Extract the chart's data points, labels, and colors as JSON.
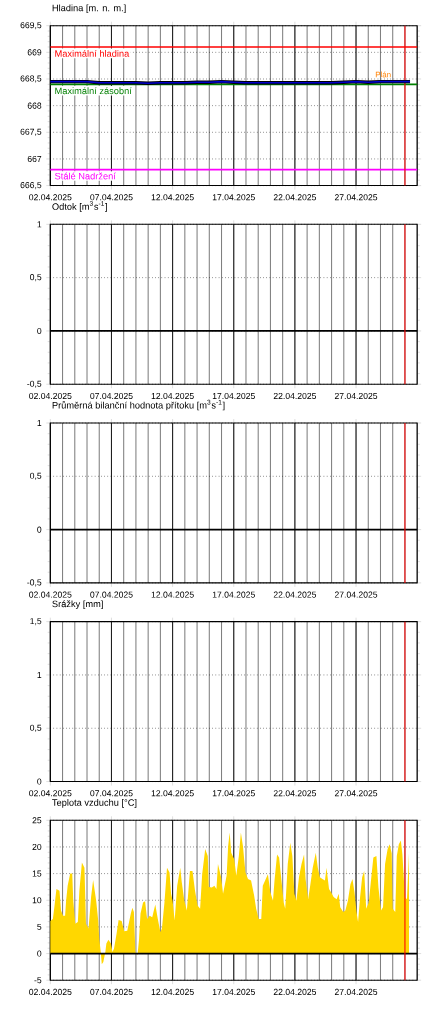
{
  "chart_data": [
    {
      "type": "line",
      "title": "Hladina [m. n. m.]",
      "grid": true,
      "x": [
        "2025-04-02",
        "2025-04-03",
        "2025-04-04",
        "2025-04-05",
        "2025-04-06",
        "2025-04-07",
        "2025-04-08",
        "2025-04-09",
        "2025-04-10",
        "2025-04-11",
        "2025-04-12",
        "2025-04-13",
        "2025-04-14",
        "2025-04-15",
        "2025-04-16",
        "2025-04-17",
        "2025-04-18",
        "2025-04-19",
        "2025-04-20",
        "2025-04-21",
        "2025-04-22",
        "2025-04-23",
        "2025-04-24",
        "2025-04-25",
        "2025-04-26",
        "2025-04-27",
        "2025-04-28",
        "2025-04-29",
        "2025-04-30",
        "2025-05-01T10:00"
      ],
      "series": [
        {
          "color": "#000000",
          "values": [
            668.45,
            668.45,
            668.45,
            668.45,
            668.43,
            668.43,
            668.43,
            668.43,
            668.42,
            668.43,
            668.43,
            668.43,
            668.44,
            668.44,
            668.45,
            668.44,
            668.43,
            668.43,
            668.43,
            668.43,
            668.43,
            668.43,
            668.43,
            668.43,
            668.44,
            668.45,
            668.44,
            668.45,
            668.45,
            668.45
          ]
        },
        {
          "color": "#0000cc",
          "values": [
            668.45,
            668.45,
            668.45,
            668.45,
            668.43,
            668.43,
            668.43,
            668.43,
            668.42,
            668.43,
            668.43,
            668.43,
            668.44,
            668.44,
            668.45,
            668.44,
            668.43,
            668.43,
            668.43,
            668.43,
            668.43,
            668.43,
            668.43,
            668.43,
            668.44,
            668.45,
            668.44,
            668.45,
            668.45,
            668.45
          ]
        }
      ],
      "xlim": [
        "2025-04-02",
        "2025-05-02"
      ],
      "xticks": [
        {
          "value": "2025-04-02",
          "label": "02.04.2025"
        },
        {
          "value": "2025-04-07",
          "label": "07.04.2025"
        },
        {
          "value": "2025-04-12",
          "label": "12.04.2025"
        },
        {
          "value": "2025-04-17",
          "label": "17.04.2025"
        },
        {
          "value": "2025-04-22",
          "label": "22.04.2025"
        },
        {
          "value": "2025-04-27",
          "label": "27.04.2025"
        }
      ],
      "ylim": [
        666.5,
        669.5
      ],
      "yticks": [
        {
          "value": 666.5,
          "label": "666,5"
        },
        667,
        {
          "value": 667.5,
          "label": "667,5"
        },
        668,
        {
          "value": 668.5,
          "label": "668,5"
        },
        669,
        {
          "value": 669.5,
          "label": "669,5"
        }
      ],
      "ref_lines": [
        {
          "axis": "y",
          "value": 669.1,
          "label": "Maximální hladina",
          "color": "#ff0000"
        },
        {
          "axis": "y",
          "value": 668.4,
          "label": "Maximální zásobní",
          "color": "#008000"
        },
        {
          "axis": "y",
          "value": 666.8,
          "label": "Stálé Nadržení",
          "color": "#ff00ff"
        },
        {
          "axis": "x",
          "value": "2025-05-01",
          "color": "#ff0000"
        }
      ],
      "annotations": [
        {
          "text": "Plán",
          "x": "2025-04-30",
          "y": 668.5
        }
      ]
    },
    {
      "type": "line",
      "title": "Odtok [m$^{3}$s$^{-1}$]",
      "grid": true,
      "xlim": [
        "2025-04-02",
        "2025-05-02"
      ],
      "xticks": [
        {
          "value": "2025-04-02",
          "label": "02.04.2025"
        },
        {
          "value": "2025-04-07",
          "label": "07.04.2025"
        },
        {
          "value": "2025-04-12",
          "label": "12.04.2025"
        },
        {
          "value": "2025-04-17",
          "label": "17.04.2025"
        },
        {
          "value": "2025-04-22",
          "label": "22.04.2025"
        },
        {
          "value": "2025-04-27",
          "label": "27.04.2025"
        }
      ],
      "ylim": [
        -0.5,
        1
      ],
      "yticks": [
        {
          "value": -0.5,
          "label": "-0,5"
        },
        0,
        {
          "value": 0.5,
          "label": "0,5"
        },
        1
      ],
      "ref_lines": [
        {
          "axis": "y",
          "value": 0,
          "color": "#000000"
        },
        {
          "axis": "x",
          "value": "2025-05-01",
          "color": "#ff0000"
        }
      ]
    },
    {
      "type": "line",
      "title": "Průměrná bilanční hodnota přítoku   [m$^{3}$s$^{-1}$]",
      "grid": true,
      "xlim": [
        "2025-04-02",
        "2025-05-02"
      ],
      "xticks": [
        {
          "value": "2025-04-02",
          "label": "02.04.2025"
        },
        {
          "value": "2025-04-07",
          "label": "07.04.2025"
        },
        {
          "value": "2025-04-12",
          "label": "12.04.2025"
        },
        {
          "value": "2025-04-17",
          "label": "17.04.2025"
        },
        {
          "value": "2025-04-22",
          "label": "22.04.2025"
        },
        {
          "value": "2025-04-27",
          "label": "27.04.2025"
        }
      ],
      "ylim": [
        -0.5,
        1
      ],
      "yticks": [
        {
          "value": -0.5,
          "label": "-0,5"
        },
        0,
        {
          "value": 0.5,
          "label": "0,5"
        },
        1
      ],
      "ref_lines": [
        {
          "axis": "y",
          "value": 0,
          "color": "#000000"
        },
        {
          "axis": "x",
          "value": "2025-05-01",
          "color": "#ff0000"
        }
      ]
    },
    {
      "type": "line",
      "title": "Srážky [mm]",
      "grid": true,
      "xlim": [
        "2025-04-02",
        "2025-05-02"
      ],
      "xticks": [
        {
          "value": "2025-04-02",
          "label": "02.04.2025"
        },
        {
          "value": "2025-04-07",
          "label": "07.04.2025"
        },
        {
          "value": "2025-04-12",
          "label": "12.04.2025"
        },
        {
          "value": "2025-04-17",
          "label": "17.04.2025"
        },
        {
          "value": "2025-04-22",
          "label": "22.04.2025"
        },
        {
          "value": "2025-04-27",
          "label": "27.04.2025"
        }
      ],
      "ylim": [
        0,
        1.5
      ],
      "yticks": [
        0,
        {
          "value": 0.5,
          "label": "0,5"
        },
        1,
        {
          "value": 1.5,
          "label": "1,5"
        }
      ],
      "ref_lines": [
        {
          "axis": "x",
          "value": "2025-05-01",
          "color": "#ff0000"
        }
      ]
    },
    {
      "type": "area",
      "title": "Teplota vzduchu [°C]",
      "grid": true,
      "x": [
        "2025-04-02T00:00",
        "2025-04-02T05:00",
        "2025-04-02T08:00",
        "2025-04-02T12:00",
        "2025-04-02T18:00",
        "2025-04-02T21:00",
        "2025-04-03T01:00",
        "2025-04-03T05:00",
        "2025-04-03T07:00",
        "2025-04-03T10:00",
        "2025-04-03T15:00",
        "2025-04-03T19:00",
        "2025-04-03T21:00",
        "2025-04-04T01:00",
        "2025-04-04T06:00",
        "2025-04-04T09:00",
        "2025-04-04T14:00",
        "2025-04-04T19:00",
        "2025-04-04T22:00",
        "2025-04-05T03:00",
        "2025-04-05T08:00",
        "2025-04-05T12:00",
        "2025-04-05T18:00",
        "2025-04-05T22:00",
        "2025-04-06T00:00",
        "2025-04-06T03:00",
        "2025-04-06T05:00",
        "2025-04-06T08:00",
        "2025-04-06T12:00",
        "2025-04-06T14:00",
        "2025-04-06T18:00",
        "2025-04-06T23:00",
        "2025-04-07T02:00",
        "2025-04-07T05:00",
        "2025-04-07T10:00",
        "2025-04-07T14:00",
        "2025-04-07T20:00",
        "2025-04-08T01:00",
        "2025-04-08T07:00",
        "2025-04-08T14:00",
        "2025-04-08T17:00",
        "2025-04-08T20:00",
        "2025-04-08T23:00",
        "2025-04-09T03:00",
        "2025-04-09T06:00",
        "2025-04-09T09:00",
        "2025-04-09T14:00",
        "2025-04-09T18:00",
        "2025-04-09T22:00",
        "2025-04-10T03:00",
        "2025-04-10T08:00",
        "2025-04-10T14:00",
        "2025-04-10T19:00",
        "2025-04-11T00:00",
        "2025-04-11T03:00",
        "2025-04-11T08:00",
        "2025-04-11T13:00",
        "2025-04-11T18:00",
        "2025-04-11T21:00",
        "2025-04-12T00:00",
        "2025-04-12T04:00",
        "2025-04-12T09:00",
        "2025-04-12T15:00",
        "2025-04-12T18:00",
        "2025-04-12T23:00",
        "2025-04-13T04:00",
        "2025-04-13T10:00",
        "2025-04-13T15:00",
        "2025-04-13T20:00",
        "2025-04-14T01:00",
        "2025-04-14T06:00",
        "2025-04-14T10:00",
        "2025-04-14T16:00",
        "2025-04-14T21:00",
        "2025-04-14T23:00",
        "2025-04-15T05:00",
        "2025-04-15T10:00",
        "2025-04-15T14:00",
        "2025-04-15T17:00",
        "2025-04-15T23:00",
        "2025-04-16T03:00",
        "2025-04-16T10:00",
        "2025-04-16T13:00",
        "2025-04-16T16:00",
        "2025-04-16T19:00",
        "2025-04-17T01:00",
        "2025-04-17T05:00",
        "2025-04-17T10:00",
        "2025-04-17T14:00",
        "2025-04-17T18:00",
        "2025-04-17T23:00",
        "2025-04-18T04:00",
        "2025-04-18T10:00",
        "2025-04-18T16:00",
        "2025-04-18T20:00",
        "2025-04-19T01:00",
        "2025-04-19T06:00",
        "2025-04-19T09:00",
        "2025-04-19T14:00",
        "2025-04-19T19:00",
        "2025-04-20T00:00",
        "2025-04-20T05:00",
        "2025-04-20T08:00",
        "2025-04-20T13:00",
        "2025-04-20T17:00",
        "2025-04-20T21:00",
        "2025-04-21T02:00",
        "2025-04-21T05:00",
        "2025-04-21T10:00",
        "2025-04-21T15:00",
        "2025-04-21T19:00",
        "2025-04-21T23:00",
        "2025-04-22T03:00",
        "2025-04-22T08:00",
        "2025-04-22T13:00",
        "2025-04-22T18:00",
        "2025-04-22T21:00",
        "2025-04-23T02:00",
        "2025-04-23T06:00",
        "2025-04-23T11:00",
        "2025-04-23T17:00",
        "2025-04-23T21:00",
        "2025-04-24T01:00",
        "2025-04-24T06:00",
        "2025-04-24T11:00",
        "2025-04-24T14:00",
        "2025-04-24T19:00",
        "2025-04-24T23:00",
        "2025-04-25T04:00",
        "2025-04-25T10:00",
        "2025-04-25T14:00",
        "2025-04-25T17:00",
        "2025-04-25T23:00",
        "2025-04-26T03:00",
        "2025-04-26T08:00",
        "2025-04-26T13:00",
        "2025-04-26T17:00",
        "2025-04-26T21:00",
        "2025-04-27T01:00",
        "2025-04-27T04:00",
        "2025-04-27T08:00",
        "2025-04-27T12:00",
        "2025-04-27T16:00",
        "2025-04-27T20:00",
        "2025-04-28T01:00",
        "2025-04-28T05:00",
        "2025-04-28T10:00",
        "2025-04-28T16:00",
        "2025-04-28T20:00",
        "2025-04-29T01:00",
        "2025-04-29T05:00",
        "2025-04-29T09:00",
        "2025-04-29T14:00",
        "2025-04-29T18:00",
        "2025-04-29T22:00",
        "2025-04-30T00:00",
        "2025-04-30T05:00",
        "2025-04-30T08:00",
        "2025-04-30T12:00",
        "2025-04-30T16:00",
        "2025-04-30T19:00",
        "2025-05-01T00:00",
        "2025-05-01T04:00",
        "2025-05-01T08:00"
      ],
      "series": [
        {
          "color": "#ffd700",
          "values": [
            6.1,
            6.5,
            8.8,
            12.1,
            11.8,
            8.1,
            7.1,
            7.1,
            9.9,
            12.7,
            15.0,
            15.0,
            9.9,
            5.6,
            5.9,
            11.8,
            17.1,
            16.1,
            5.6,
            4.7,
            10.6,
            13.8,
            9.9,
            6.2,
            2.8,
            0.3,
            -2.0,
            -1.6,
            0.3,
            1.9,
            2.6,
            1.9,
            0.3,
            0.9,
            3.7,
            6.3,
            6.1,
            4.2,
            4.3,
            7.5,
            8.6,
            7.8,
            0.3,
            -0.3,
            2.5,
            7.5,
            9.6,
            9.8,
            6.5,
            7.1,
            6.8,
            9.2,
            6.5,
            4.0,
            4.7,
            9.6,
            16.1,
            15.2,
            11.2,
            9.9,
            6.2,
            12.7,
            16.1,
            13.4,
            9.9,
            8.1,
            15.5,
            15.5,
            11.8,
            9.0,
            8.4,
            14.9,
            19.6,
            18.3,
            12.5,
            12.4,
            12.7,
            12.1,
            16.8,
            14.4,
            11.2,
            14.6,
            20.2,
            22.7,
            18.9,
            17.7,
            14.6,
            18.3,
            22.7,
            20.2,
            15.2,
            14.0,
            13.7,
            10.9,
            8.4,
            6.5,
            6.5,
            12.7,
            13.8,
            14.9,
            11.5,
            9.9,
            13.7,
            18.6,
            18.0,
            14.3,
            9.6,
            8.4,
            16.8,
            20.8,
            18.3,
            11.2,
            9.9,
            14.3,
            16.8,
            18.6,
            14.0,
            10.2,
            12.7,
            16.1,
            18.9,
            16.1,
            14.3,
            14.0,
            13.7,
            16.1,
            12.1,
            11.5,
            10.6,
            10.2,
            11.2,
            8.7,
            7.8,
            8.1,
            9.9,
            13.0,
            14.0,
            11.5,
            7.8,
            5.9,
            10.6,
            14.3,
            15.5,
            8.4,
            9.6,
            13.4,
            18.0,
            18.3,
            12.4,
            8.1,
            8.7,
            16.8,
            19.6,
            20.5,
            18.8,
            8.4,
            7.8,
            18.3,
            20.5,
            21.2,
            18.6,
            10.6,
            10.2,
            18.9
          ]
        }
      ],
      "xlim": [
        "2025-04-02",
        "2025-05-02"
      ],
      "xticks": [
        {
          "value": "2025-04-02",
          "label": "02.04.2025"
        },
        {
          "value": "2025-04-07",
          "label": "07.04.2025"
        },
        {
          "value": "2025-04-12",
          "label": "12.04.2025"
        },
        {
          "value": "2025-04-17",
          "label": "17.04.2025"
        },
        {
          "value": "2025-04-22",
          "label": "22.04.2025"
        },
        {
          "value": "2025-04-27",
          "label": "27.04.2025"
        }
      ],
      "ylim": [
        -5,
        25
      ],
      "yticks": [
        -5,
        0,
        5,
        10,
        15,
        20,
        25
      ],
      "ref_lines": [
        {
          "axis": "y",
          "value": 0,
          "color": "#000000"
        },
        {
          "axis": "x",
          "value": "2025-05-01",
          "color": "#ff0000"
        }
      ]
    }
  ]
}
